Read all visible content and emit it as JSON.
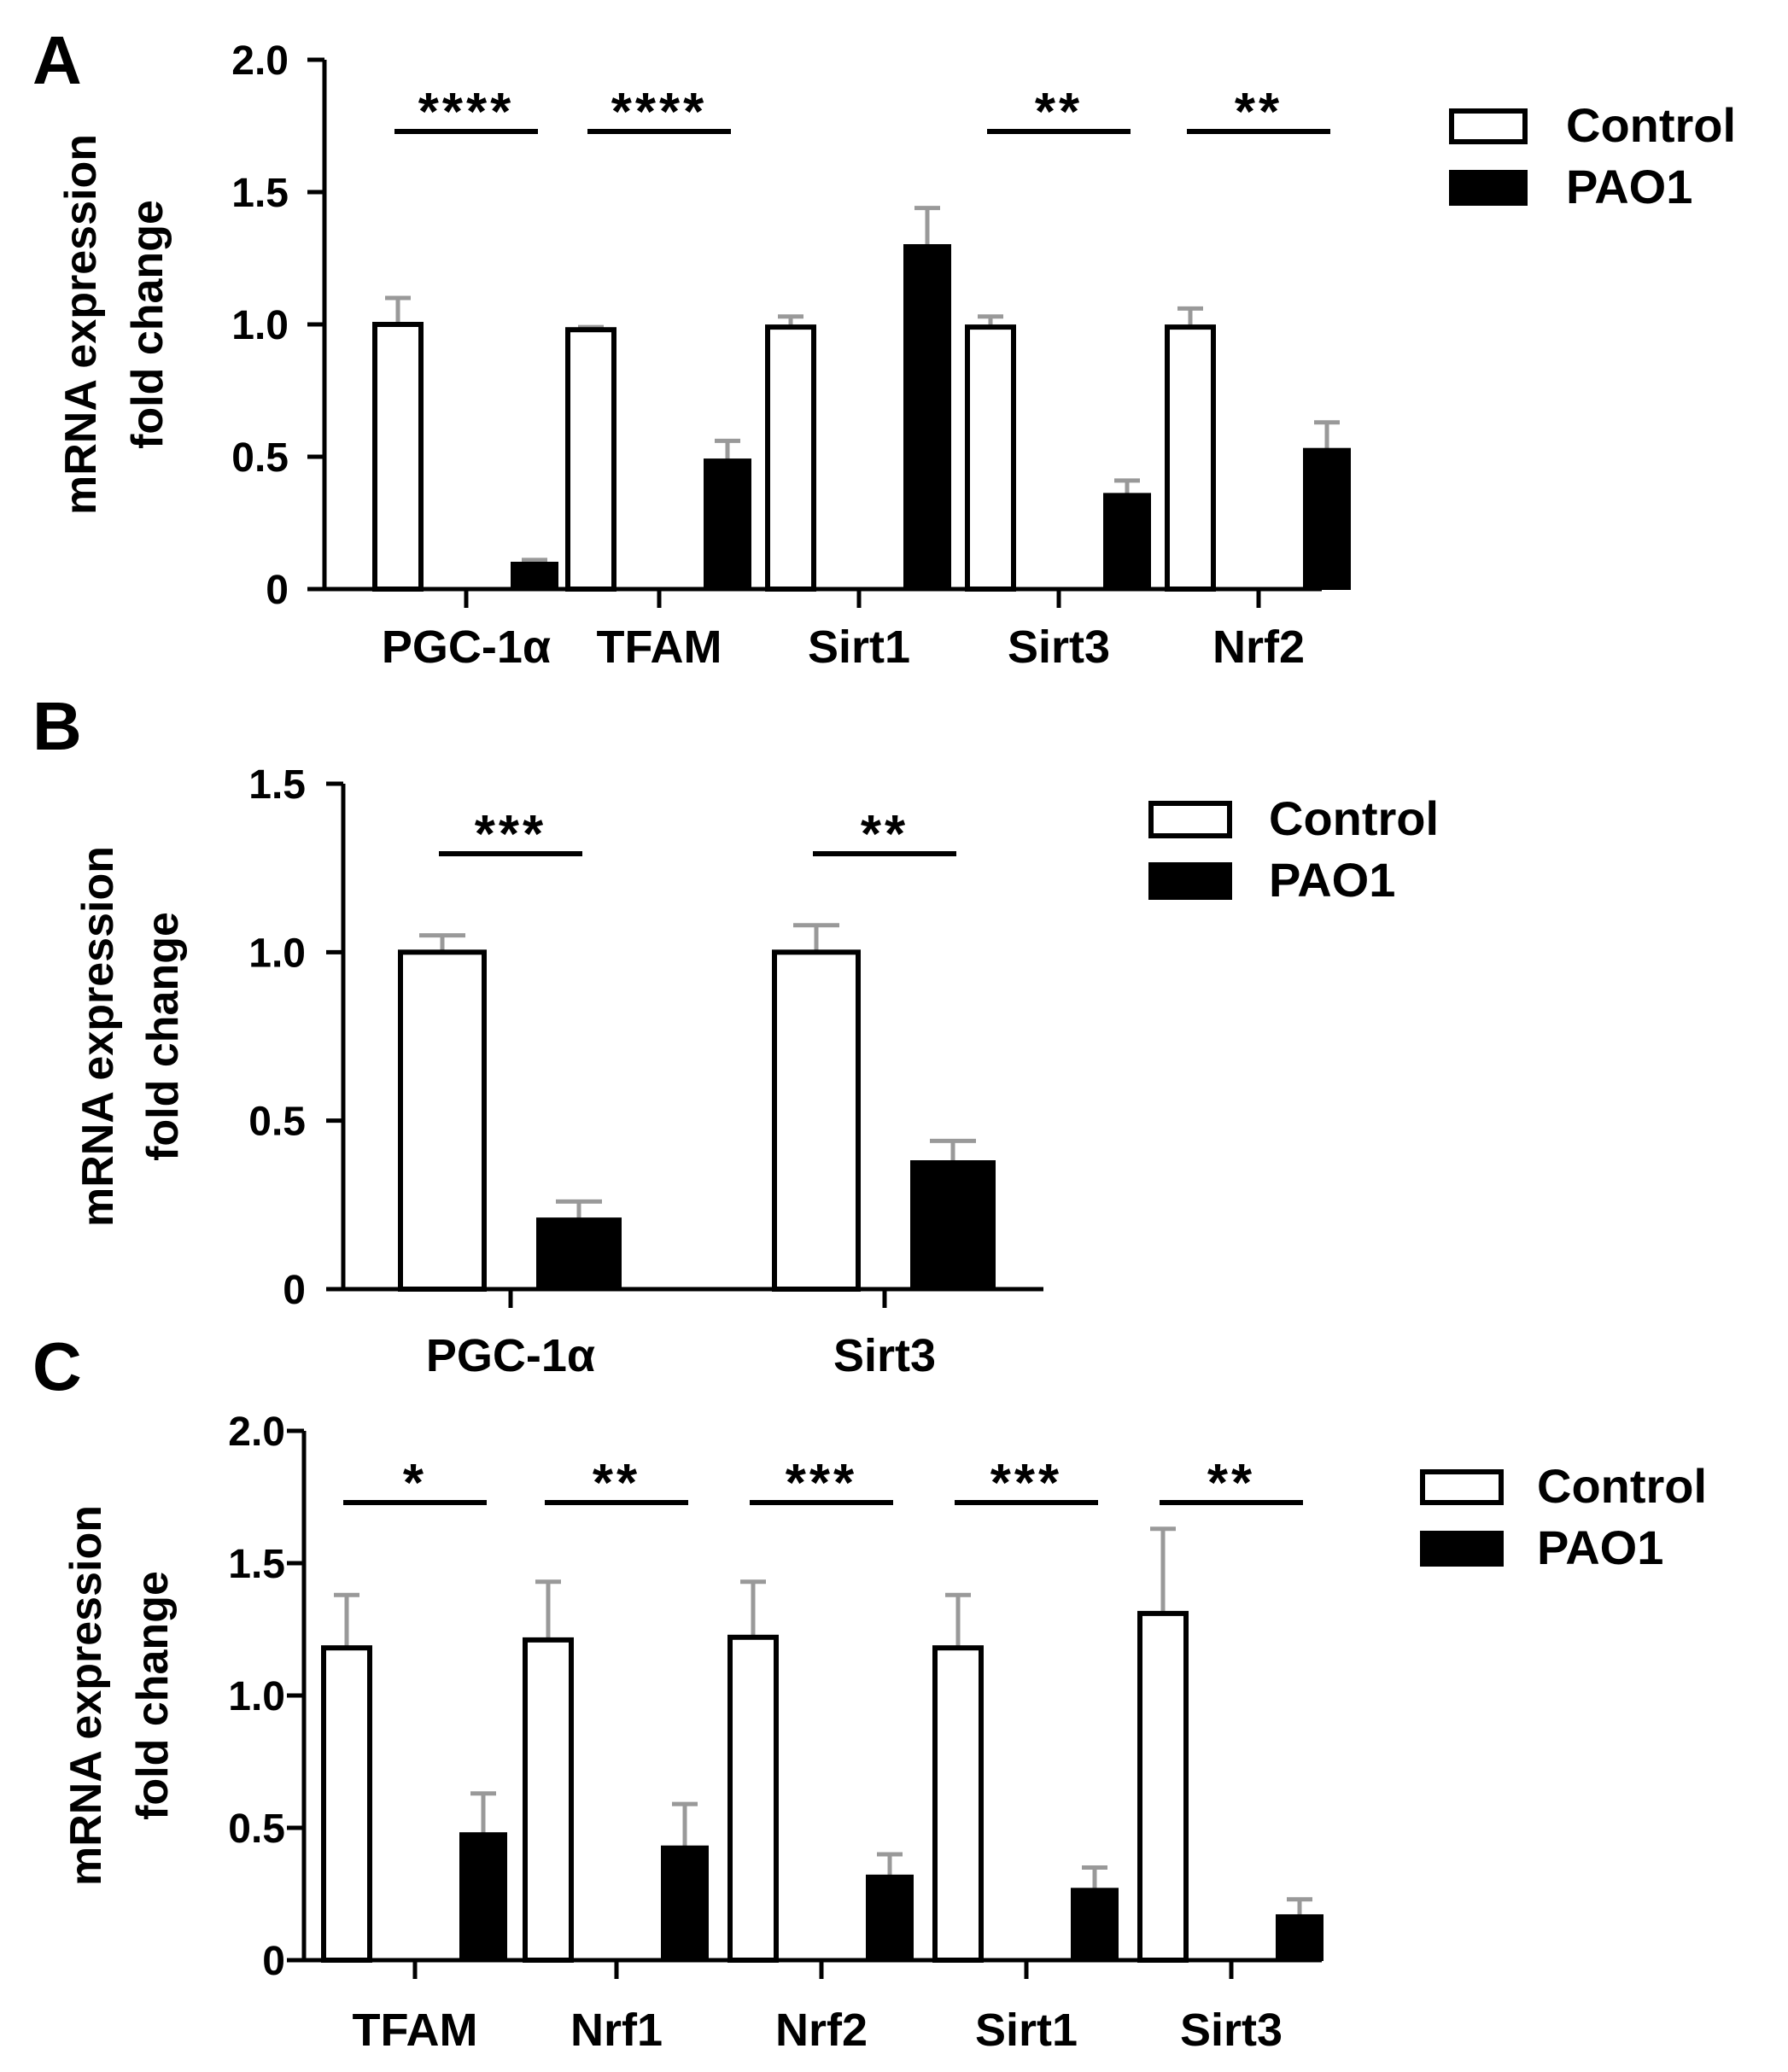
{
  "colors": {
    "control": "#ffffff",
    "pao1": "#000000",
    "axis": "#000000",
    "error_bar": "#999999"
  },
  "chart_data": [
    {
      "panel": "A",
      "type": "bar",
      "ylabel": [
        "mRNA expression",
        "fold change"
      ],
      "ylim": [
        0,
        2.0
      ],
      "yticks": [
        0,
        0.5,
        1.0,
        1.5,
        2.0
      ],
      "ytick_labels": [
        "0",
        "0.5",
        "1.0",
        "1.5",
        "2.0"
      ],
      "categories": [
        "PGC-1α",
        "TFAM",
        "Sirt1",
        "Sirt3",
        "Nrf2"
      ],
      "series": [
        {
          "name": "Control",
          "color": "#ffffff",
          "values": [
            1.0,
            0.98,
            0.99,
            0.99,
            0.99
          ],
          "errors": [
            0.1,
            0.01,
            0.04,
            0.04,
            0.07
          ]
        },
        {
          "name": "PAO1",
          "color": "#000000",
          "values": [
            0.1,
            0.49,
            1.3,
            0.36,
            0.53
          ],
          "errors": [
            0.01,
            0.07,
            0.14,
            0.05,
            0.1
          ]
        }
      ],
      "significance": [
        "****",
        "****",
        "",
        "**",
        "**"
      ],
      "legend": [
        "Control",
        "PAO1"
      ],
      "legend_position": "top-right"
    },
    {
      "panel": "B",
      "type": "bar",
      "ylabel": [
        "mRNA expression",
        "fold change"
      ],
      "ylim": [
        0,
        1.5
      ],
      "yticks": [
        0,
        0.5,
        1.0,
        1.5
      ],
      "ytick_labels": [
        "0",
        "0.5",
        "1.0",
        "1.5"
      ],
      "categories": [
        "PGC-1α",
        "Sirt3"
      ],
      "series": [
        {
          "name": "Control",
          "color": "#ffffff",
          "values": [
            1.0,
            1.0
          ],
          "errors": [
            0.05,
            0.08
          ]
        },
        {
          "name": "PAO1",
          "color": "#000000",
          "values": [
            0.21,
            0.38
          ],
          "errors": [
            0.05,
            0.06
          ]
        }
      ],
      "significance": [
        "***",
        "**"
      ],
      "legend": [
        "Control",
        "PAO1"
      ],
      "legend_position": "top-right"
    },
    {
      "panel": "C",
      "type": "bar",
      "ylabel": [
        "mRNA expression",
        "fold change"
      ],
      "ylim": [
        0,
        2.0
      ],
      "yticks": [
        0,
        0.5,
        1.0,
        1.5,
        2.0
      ],
      "ytick_labels": [
        "0",
        "0.5",
        "1.0",
        "1.5",
        "2.0"
      ],
      "categories": [
        "TFAM",
        "Nrf1",
        "Nrf2",
        "Sirt1",
        "Sirt3"
      ],
      "series": [
        {
          "name": "Control",
          "color": "#ffffff",
          "values": [
            1.18,
            1.21,
            1.22,
            1.18,
            1.31
          ],
          "errors": [
            0.2,
            0.22,
            0.21,
            0.2,
            0.32
          ]
        },
        {
          "name": "PAO1",
          "color": "#000000",
          "values": [
            0.48,
            0.43,
            0.32,
            0.27,
            0.17
          ],
          "errors": [
            0.15,
            0.16,
            0.08,
            0.08,
            0.06
          ]
        }
      ],
      "significance": [
        "*",
        "**",
        "***",
        "***",
        "**"
      ],
      "legend": [
        "Control",
        "PAO1"
      ],
      "legend_position": "top-right"
    }
  ]
}
